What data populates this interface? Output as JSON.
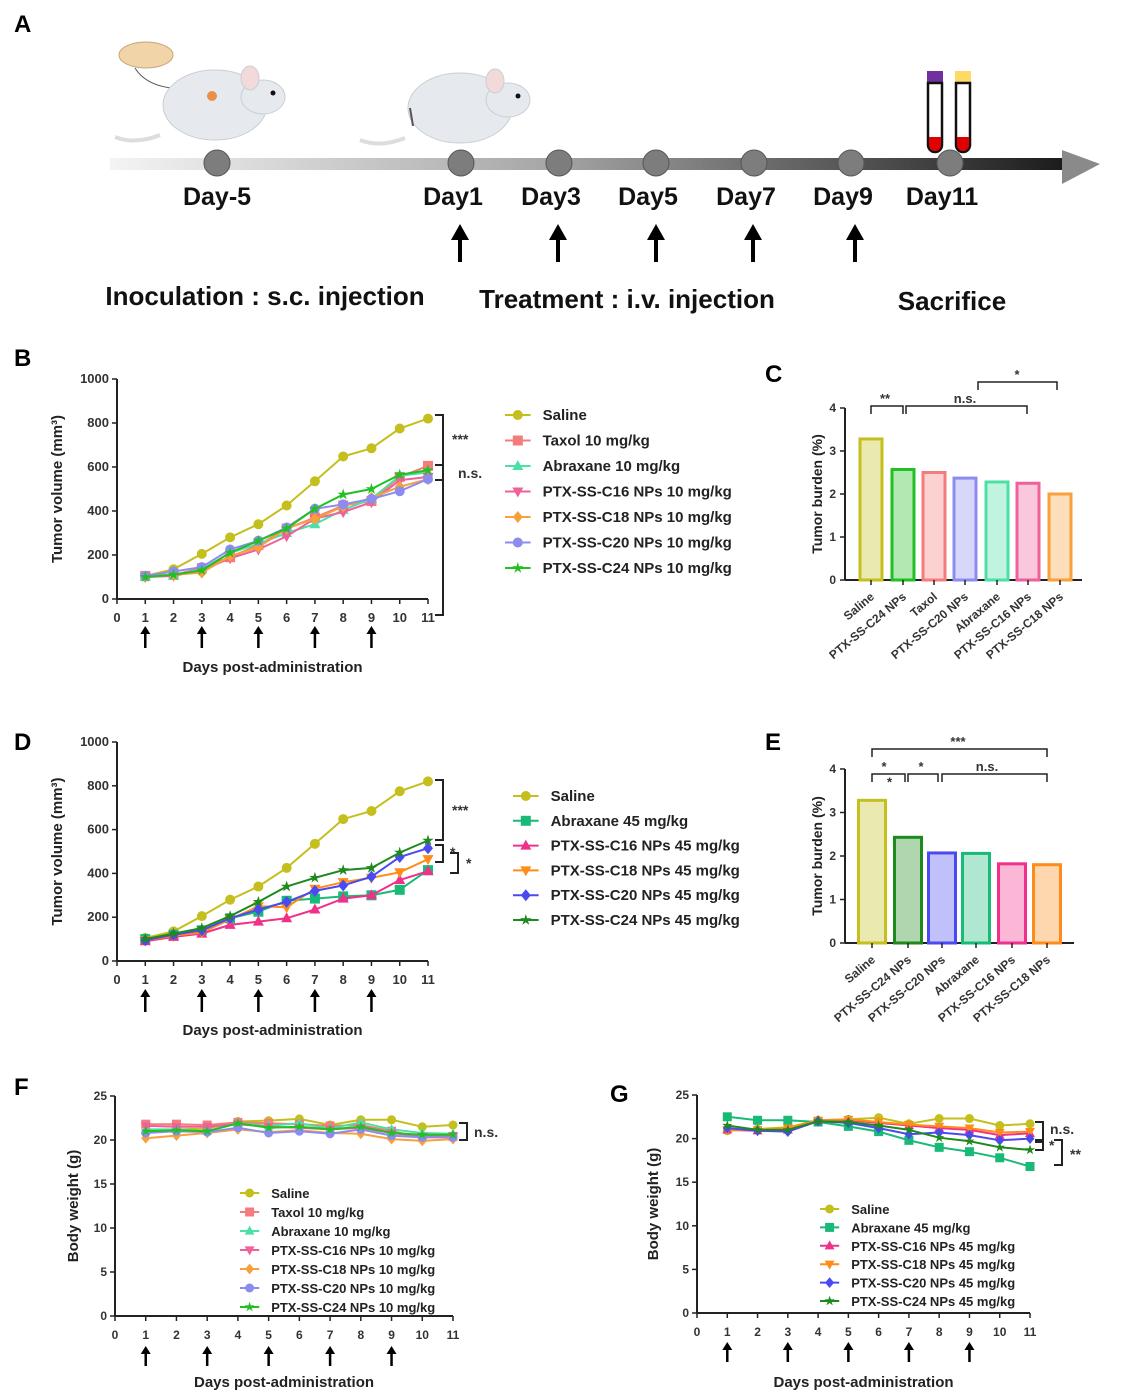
{
  "panel_labels": [
    "A",
    "B",
    "C",
    "D",
    "E",
    "F",
    "G"
  ],
  "timeline": {
    "days": [
      "Day-5",
      "Day1",
      "Day3",
      "Day5",
      "Day7",
      "Day9",
      "Day11"
    ],
    "treatment_days": [
      "Day1",
      "Day3",
      "Day5",
      "Day7",
      "Day9"
    ],
    "phases": [
      "Inoculation : s.c. injection",
      "Treatment : i.v. injection",
      "Sacrifice"
    ],
    "tube_cap_colors": [
      "#7030a0",
      "#ffd966"
    ],
    "blood_color": "#e00000",
    "icons": [
      "petri-dish-icon",
      "syringe-icon",
      "mouse-icon",
      "blood-tube-icon"
    ]
  },
  "chart_data": [
    {
      "id": "B",
      "type": "line",
      "xlabel": "Days post-administration",
      "ylabel": "Tumor volume (mm³)",
      "xlim": [
        0,
        11
      ],
      "ylim": [
        0,
        1000
      ],
      "xticks": [
        0,
        1,
        2,
        3,
        4,
        5,
        6,
        7,
        8,
        9,
        10,
        11
      ],
      "yticks": [
        0,
        200,
        400,
        600,
        800,
        1000
      ],
      "dose_days": [
        1,
        3,
        5,
        7,
        9
      ],
      "x": [
        1,
        2,
        3,
        4,
        5,
        6,
        7,
        8,
        9,
        10,
        11
      ],
      "legend_position": "right",
      "series": [
        {
          "name": "Saline",
          "color": "#c4bf1c",
          "marker": "circle",
          "values": [
            105,
            135,
            205,
            280,
            340,
            425,
            535,
            648,
            685,
            775,
            820
          ]
        },
        {
          "name": "Taxol 10 mg/kg",
          "color": "#f47c7c",
          "marker": "square",
          "values": [
            105,
            110,
            140,
            190,
            245,
            320,
            370,
            425,
            445,
            555,
            605
          ]
        },
        {
          "name": "Abraxane 10 mg/kg",
          "color": "#4de0a6",
          "marker": "triangle-up",
          "values": [
            100,
            105,
            135,
            210,
            250,
            300,
            340,
            405,
            455,
            560,
            575
          ]
        },
        {
          "name": "PTX-SS-C16 NPs 10 mg/kg",
          "color": "#f0609a",
          "marker": "triangle-down",
          "values": [
            100,
            105,
            130,
            185,
            225,
            285,
            365,
            395,
            440,
            540,
            555
          ]
        },
        {
          "name": "PTX-SS-C18 NPs 10 mg/kg",
          "color": "#f7a03c",
          "marker": "diamond",
          "values": [
            100,
            110,
            120,
            195,
            235,
            320,
            365,
            420,
            460,
            510,
            545
          ]
        },
        {
          "name": "PTX-SS-C20 NPs 10 mg/kg",
          "color": "#8c8cf0",
          "marker": "circle",
          "values": [
            105,
            125,
            145,
            225,
            265,
            325,
            410,
            430,
            455,
            490,
            545
          ]
        },
        {
          "name": "PTX-SS-C24 NPs 10 mg/kg",
          "color": "#22c022",
          "marker": "star",
          "values": [
            100,
            110,
            130,
            210,
            265,
            320,
            410,
            475,
            500,
            565,
            585
          ]
        }
      ],
      "annotations": [
        "***",
        "n.s."
      ]
    },
    {
      "id": "C",
      "type": "bar",
      "ylabel": "Tumor burden (%)",
      "ylim": [
        0,
        4
      ],
      "yticks": [
        0,
        1,
        2,
        3,
        4
      ],
      "categories": [
        "Saline",
        "PTX-SS-C24 NPs",
        "Taxol",
        "PTX-SS-C20 NPs",
        "Abraxane",
        "PTX-SS-C16 NPs",
        "PTX-SS-C18 NPs"
      ],
      "values": [
        3.28,
        2.57,
        2.5,
        2.37,
        2.28,
        2.25,
        2.0
      ],
      "colors": [
        "#c4bf1c",
        "#22c022",
        "#f47c7c",
        "#8c8cf0",
        "#4de0a6",
        "#f0609a",
        "#f7a03c"
      ],
      "annotations": [
        "**",
        "n.s.",
        "*"
      ]
    },
    {
      "id": "D",
      "type": "line",
      "xlabel": "Days post-administration",
      "ylabel": "Tumor volume (mm³)",
      "xlim": [
        0,
        11
      ],
      "ylim": [
        0,
        1000
      ],
      "xticks": [
        0,
        1,
        2,
        3,
        4,
        5,
        6,
        7,
        8,
        9,
        10,
        11
      ],
      "yticks": [
        0,
        200,
        400,
        600,
        800,
        1000
      ],
      "dose_days": [
        1,
        3,
        5,
        7,
        9
      ],
      "x": [
        1,
        2,
        3,
        4,
        5,
        6,
        7,
        8,
        9,
        10,
        11
      ],
      "legend_position": "right",
      "series": [
        {
          "name": "Saline",
          "color": "#c4bf1c",
          "marker": "circle",
          "values": [
            105,
            135,
            205,
            280,
            340,
            425,
            535,
            648,
            685,
            775,
            820
          ]
        },
        {
          "name": "Abraxane 45 mg/kg",
          "color": "#19b978",
          "marker": "square",
          "values": [
            100,
            120,
            140,
            195,
            225,
            275,
            285,
            295,
            300,
            325,
            415
          ]
        },
        {
          "name": "PTX-SS-C16 NPs 45 mg/kg",
          "color": "#f0308a",
          "marker": "triangle-up",
          "values": [
            90,
            110,
            125,
            165,
            180,
            195,
            235,
            285,
            300,
            370,
            410
          ]
        },
        {
          "name": "PTX-SS-C18 NPs 45 mg/kg",
          "color": "#ff8c1a",
          "marker": "triangle-down",
          "values": [
            95,
            115,
            130,
            190,
            250,
            245,
            330,
            360,
            380,
            405,
            465
          ]
        },
        {
          "name": "PTX-SS-C20 NPs 45 mg/kg",
          "color": "#4a4af0",
          "marker": "diamond",
          "values": [
            95,
            120,
            140,
            195,
            235,
            270,
            320,
            345,
            385,
            475,
            515
          ]
        },
        {
          "name": "PTX-SS-C24 NPs 45 mg/kg",
          "color": "#1e8a1e",
          "marker": "star",
          "values": [
            100,
            125,
            150,
            205,
            270,
            340,
            380,
            415,
            425,
            495,
            550
          ]
        }
      ],
      "annotations": [
        "***",
        "*",
        "*"
      ]
    },
    {
      "id": "E",
      "type": "bar",
      "ylabel": "Tumor burden (%)",
      "ylim": [
        0,
        4
      ],
      "yticks": [
        0,
        1,
        2,
        3,
        4
      ],
      "categories": [
        "Saline",
        "PTX-SS-C24 NPs",
        "PTX-SS-C20 NPs",
        "Abraxane",
        "PTX-SS-C16 NPs",
        "PTX-SS-C18 NPs"
      ],
      "values": [
        3.28,
        2.43,
        2.07,
        2.06,
        1.82,
        1.8
      ],
      "colors": [
        "#c4bf1c",
        "#1e8a1e",
        "#4a4af0",
        "#19b978",
        "#f0308a",
        "#ff8c1a"
      ],
      "annotations": [
        "***",
        "*",
        "*",
        "n.s.",
        "*"
      ]
    },
    {
      "id": "F",
      "type": "line",
      "xlabel": "Days post-administration",
      "ylabel": "Body weight (g)",
      "xlim": [
        0,
        11
      ],
      "ylim": [
        0,
        25
      ],
      "xticks": [
        0,
        1,
        2,
        3,
        4,
        5,
        6,
        7,
        8,
        9,
        10,
        11
      ],
      "yticks": [
        0,
        5,
        10,
        15,
        20,
        25
      ],
      "dose_days": [
        1,
        3,
        5,
        7,
        9
      ],
      "x": [
        1,
        2,
        3,
        4,
        5,
        6,
        7,
        8,
        9,
        10,
        11
      ],
      "legend_position": "center",
      "series": [
        {
          "name": "Saline",
          "color": "#c4bf1c",
          "marker": "circle",
          "values": [
            20.8,
            21.2,
            21.3,
            22.1,
            22.2,
            22.4,
            21.7,
            22.3,
            22.3,
            21.5,
            21.7
          ]
        },
        {
          "name": "Taxol 10 mg/kg",
          "color": "#f47c7c",
          "marker": "square",
          "values": [
            21.8,
            21.8,
            21.7,
            22.0,
            21.9,
            21.8,
            21.6,
            21.7,
            21.0,
            20.3,
            20.4
          ]
        },
        {
          "name": "Abraxane 10 mg/kg",
          "color": "#4de0a6",
          "marker": "triangle-up",
          "values": [
            21.2,
            21.2,
            21.0,
            21.9,
            21.6,
            21.9,
            21.3,
            22.0,
            21.2,
            20.8,
            20.7
          ]
        },
        {
          "name": "PTX-SS-C16 NPs 10 mg/kg",
          "color": "#f0609a",
          "marker": "triangle-down",
          "values": [
            21.6,
            21.5,
            21.5,
            21.8,
            21.5,
            21.4,
            21.2,
            21.4,
            20.8,
            20.4,
            20.5
          ]
        },
        {
          "name": "PTX-SS-C18 NPs 10 mg/kg",
          "color": "#f7a03c",
          "marker": "diamond",
          "values": [
            20.2,
            20.5,
            20.8,
            21.2,
            20.9,
            21.1,
            20.8,
            20.7,
            20.1,
            19.9,
            20.1
          ]
        },
        {
          "name": "PTX-SS-C20 NPs 10 mg/kg",
          "color": "#8c8cf0",
          "marker": "circle",
          "values": [
            20.8,
            21.0,
            20.9,
            21.4,
            20.8,
            21.0,
            20.7,
            21.2,
            20.5,
            20.3,
            20.3
          ]
        },
        {
          "name": "PTX-SS-C24 NPs 10 mg/kg",
          "color": "#22c022",
          "marker": "star",
          "values": [
            21.0,
            21.1,
            21.0,
            21.9,
            21.4,
            21.5,
            21.2,
            21.5,
            20.8,
            20.6,
            20.6
          ]
        }
      ],
      "annotations": [
        "n.s."
      ]
    },
    {
      "id": "G",
      "type": "line",
      "xlabel": "Days post-administration",
      "ylabel": "Body weight (g)",
      "xlim": [
        0,
        11
      ],
      "ylim": [
        0,
        25
      ],
      "xticks": [
        0,
        1,
        2,
        3,
        4,
        5,
        6,
        7,
        8,
        9,
        10,
        11
      ],
      "yticks": [
        0,
        5,
        10,
        15,
        20,
        25
      ],
      "dose_days": [
        1,
        3,
        5,
        7,
        9
      ],
      "x": [
        1,
        2,
        3,
        4,
        5,
        6,
        7,
        8,
        9,
        10,
        11
      ],
      "legend_position": "center",
      "series": [
        {
          "name": "Saline",
          "color": "#c4bf1c",
          "marker": "circle",
          "values": [
            20.9,
            21.1,
            21.3,
            22.1,
            22.2,
            22.4,
            21.7,
            22.3,
            22.3,
            21.5,
            21.7
          ]
        },
        {
          "name": "Abraxane 45 mg/kg",
          "color": "#19b978",
          "marker": "square",
          "values": [
            22.5,
            22.1,
            22.1,
            21.9,
            21.4,
            20.8,
            19.8,
            19.0,
            18.5,
            17.8,
            16.8
          ]
        },
        {
          "name": "PTX-SS-C16 NPs 45 mg/kg",
          "color": "#f0308a",
          "marker": "triangle-up",
          "values": [
            21.0,
            20.9,
            21.0,
            22.1,
            22.1,
            21.8,
            21.5,
            21.2,
            21.0,
            20.4,
            20.6
          ]
        },
        {
          "name": "PTX-SS-C18 NPs 45 mg/kg",
          "color": "#ff8c1a",
          "marker": "triangle-down",
          "values": [
            21.0,
            21.0,
            21.2,
            22.1,
            22.2,
            21.9,
            21.6,
            21.4,
            21.2,
            20.7,
            20.8
          ]
        },
        {
          "name": "PTX-SS-C20 NPs 45 mg/kg",
          "color": "#4a4af0",
          "marker": "diamond",
          "values": [
            21.2,
            20.9,
            20.8,
            22.0,
            21.8,
            21.2,
            20.5,
            20.7,
            20.4,
            19.8,
            20.0
          ]
        },
        {
          "name": "PTX-SS-C24 NPs 45 mg/kg",
          "color": "#1e8a1e",
          "marker": "star",
          "values": [
            21.5,
            21.0,
            21.0,
            22.0,
            21.9,
            21.5,
            21.0,
            20.1,
            19.7,
            19.0,
            18.7
          ]
        }
      ],
      "annotations": [
        "n.s.",
        "*",
        "**"
      ]
    }
  ]
}
